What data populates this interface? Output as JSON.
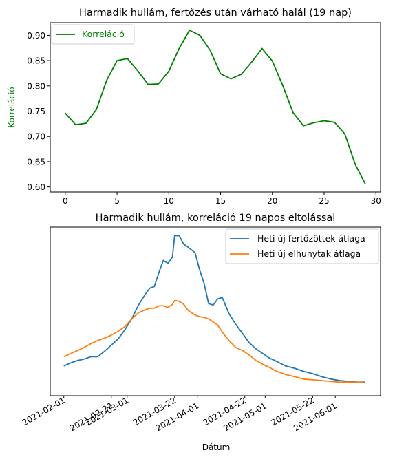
{
  "chart_data": [
    {
      "type": "line",
      "title": "Harmadik hullám, fertőzés után várható halál (19 nap)",
      "xlabel": "",
      "ylabel": "Korreláció",
      "xlim": [
        -1.45,
        30.45
      ],
      "ylim": [
        0.59,
        0.925
      ],
      "x_ticks": [
        0,
        5,
        10,
        15,
        20,
        25,
        30
      ],
      "x_tick_labels": [
        "0",
        "5",
        "10",
        "15",
        "20",
        "25",
        "30"
      ],
      "y_ticks": [
        0.6,
        0.65,
        0.7,
        0.75,
        0.8,
        0.85,
        0.9
      ],
      "y_tick_labels": [
        "0.60",
        "0.65",
        "0.70",
        "0.75",
        "0.80",
        "0.85",
        "0.90"
      ],
      "legend_position": "top-left",
      "grid": false,
      "series": [
        {
          "name": "Korreláció",
          "color": "#008000",
          "x": [
            0,
            1,
            2,
            3,
            4,
            5,
            6,
            7,
            8,
            9,
            10,
            11,
            12,
            13,
            14,
            15,
            16,
            17,
            18,
            19,
            20,
            21,
            22,
            23,
            24,
            25,
            26,
            27,
            28,
            29
          ],
          "y": [
            0.746,
            0.723,
            0.726,
            0.753,
            0.811,
            0.85,
            0.854,
            0.83,
            0.803,
            0.804,
            0.829,
            0.874,
            0.91,
            0.9,
            0.87,
            0.824,
            0.814,
            0.823,
            0.847,
            0.874,
            0.849,
            0.801,
            0.747,
            0.721,
            0.727,
            0.731,
            0.728,
            0.705,
            0.645,
            0.605
          ]
        }
      ]
    },
    {
      "type": "line",
      "title": "Harmadik hullám, korreláció 19 napos eltolással",
      "xlabel": "Dátum",
      "ylabel": "",
      "x_type": "date",
      "xlim": [
        "2021-01-26",
        "2021-06-21"
      ],
      "ylim": [
        0,
        1
      ],
      "x_ticks": [
        "2021-02-01",
        "2021-02-22",
        "2021-03-01",
        "2021-03-22",
        "2021-04-01",
        "2021-04-22",
        "2021-05-01",
        "2021-05-22",
        "2021-06-01"
      ],
      "x_tick_labels": [
        "2021-02-01",
        "2021-02-22",
        "2021-03-01",
        "2021-03-22",
        "2021-04-01",
        "2021-04-22",
        "2021-05-01",
        "2021-05-22",
        "2021-06-01"
      ],
      "y_axis_visible": false,
      "legend_position": "top-right",
      "grid": false,
      "series": [
        {
          "name": "Heti új fertőzöttek átlaga",
          "color": "#1f77b4",
          "x": [
            "2021-02-01",
            "2021-02-04",
            "2021-02-07",
            "2021-02-10",
            "2021-02-13",
            "2021-02-16",
            "2021-02-19",
            "2021-02-22",
            "2021-02-25",
            "2021-02-28",
            "2021-03-03",
            "2021-03-06",
            "2021-03-09",
            "2021-03-11",
            "2021-03-13",
            "2021-03-15",
            "2021-03-17",
            "2021-03-19",
            "2021-03-21",
            "2021-03-22",
            "2021-03-24",
            "2021-03-26",
            "2021-03-28",
            "2021-03-31",
            "2021-04-02",
            "2021-04-04",
            "2021-04-06",
            "2021-04-08",
            "2021-04-10",
            "2021-04-12",
            "2021-04-15",
            "2021-04-18",
            "2021-04-21",
            "2021-04-24",
            "2021-04-27",
            "2021-04-30",
            "2021-05-03",
            "2021-05-06",
            "2021-05-10",
            "2021-05-14",
            "2021-05-18",
            "2021-05-22",
            "2021-05-26",
            "2021-05-30",
            "2021-06-03",
            "2021-06-07",
            "2021-06-11",
            "2021-06-14"
          ],
          "y": [
            0.135,
            0.155,
            0.17,
            0.18,
            0.195,
            0.195,
            0.23,
            0.27,
            0.31,
            0.37,
            0.44,
            0.53,
            0.6,
            0.64,
            0.65,
            0.74,
            0.82,
            0.8,
            0.84,
            0.98,
            0.98,
            0.925,
            0.905,
            0.87,
            0.76,
            0.67,
            0.54,
            0.53,
            0.57,
            0.58,
            0.475,
            0.405,
            0.345,
            0.285,
            0.245,
            0.215,
            0.185,
            0.165,
            0.135,
            0.12,
            0.1,
            0.085,
            0.065,
            0.05,
            0.04,
            0.035,
            0.03,
            0.03
          ]
        },
        {
          "name": "Heti új elhunytak átlaga",
          "color": "#ff7f0e",
          "x": [
            "2021-02-01",
            "2021-02-04",
            "2021-02-07",
            "2021-02-10",
            "2021-02-13",
            "2021-02-16",
            "2021-02-19",
            "2021-02-22",
            "2021-02-25",
            "2021-02-28",
            "2021-03-03",
            "2021-03-06",
            "2021-03-09",
            "2021-03-11",
            "2021-03-13",
            "2021-03-15",
            "2021-03-17",
            "2021-03-19",
            "2021-03-21",
            "2021-03-22",
            "2021-03-24",
            "2021-03-26",
            "2021-03-28",
            "2021-03-31",
            "2021-04-02",
            "2021-04-04",
            "2021-04-06",
            "2021-04-08",
            "2021-04-10",
            "2021-04-12",
            "2021-04-15",
            "2021-04-18",
            "2021-04-21",
            "2021-04-24",
            "2021-04-27",
            "2021-04-30",
            "2021-05-03",
            "2021-05-06",
            "2021-05-10",
            "2021-05-14",
            "2021-05-18",
            "2021-05-22",
            "2021-05-26",
            "2021-05-30",
            "2021-06-03",
            "2021-06-07",
            "2021-06-11",
            "2021-06-14"
          ],
          "y": [
            0.195,
            0.215,
            0.235,
            0.255,
            0.28,
            0.3,
            0.315,
            0.335,
            0.36,
            0.39,
            0.44,
            0.48,
            0.5,
            0.51,
            0.51,
            0.525,
            0.525,
            0.515,
            0.535,
            0.56,
            0.555,
            0.535,
            0.495,
            0.465,
            0.455,
            0.45,
            0.44,
            0.42,
            0.4,
            0.355,
            0.3,
            0.255,
            0.235,
            0.205,
            0.17,
            0.145,
            0.125,
            0.1,
            0.08,
            0.065,
            0.05,
            0.045,
            0.04,
            0.035,
            0.03,
            0.03,
            0.03,
            0.025
          ]
        }
      ]
    }
  ]
}
